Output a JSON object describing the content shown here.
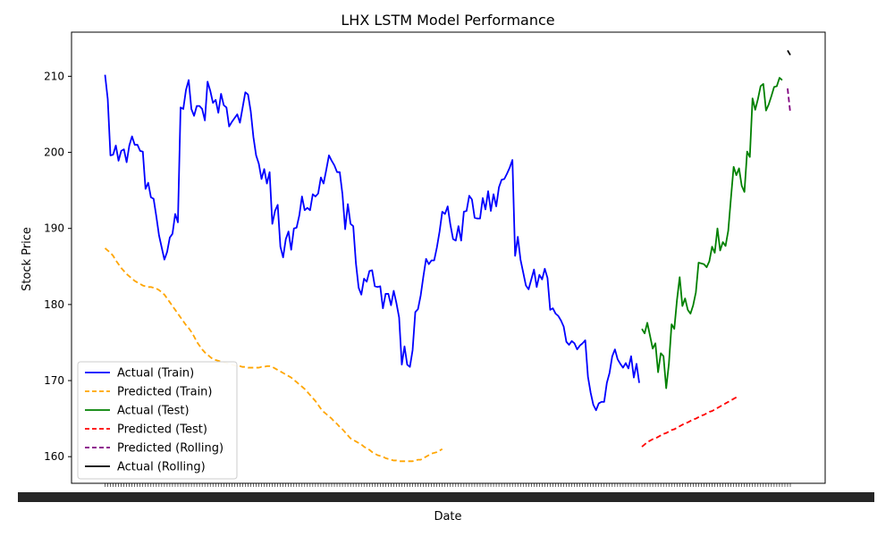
{
  "chart_data": {
    "type": "line",
    "title": "LHX LSTM Model Performance",
    "xlabel": "Date",
    "ylabel": "Stock Price",
    "ylim": [
      156.5,
      215.8
    ],
    "yticks": [
      160,
      170,
      180,
      190,
      200,
      210
    ],
    "x_ticks_note": "dense overlapping date tick labels",
    "legend_position": "lower-left",
    "grid": false,
    "series": [
      {
        "name": "Actual (Train)",
        "color": "#0000ff",
        "style": "solid",
        "start_index": 0,
        "values": [
          210.2,
          207,
          199.6,
          199.7,
          200.9,
          198.9,
          200.2,
          200.4,
          198.7,
          200.9,
          202.1,
          201,
          201,
          200.2,
          200.1,
          195.2,
          196,
          194.1,
          193.9,
          191.6,
          189.1,
          187.5,
          185.9,
          186.9,
          188.8,
          189.3,
          191.9,
          190.8,
          205.9,
          205.7,
          208.2,
          209.5,
          205.7,
          204.8,
          206.1,
          206.1,
          205.7,
          204.2,
          209.3,
          208.1,
          206.5,
          206.9,
          205.2,
          207.7,
          206.2,
          205.9,
          203.4,
          204,
          204.5,
          205,
          203.9,
          205.9,
          207.9,
          207.6,
          205.4,
          202,
          199.6,
          198.5,
          196.5,
          197.8,
          195.9,
          197.4,
          190.6,
          192.3,
          193.1,
          187.6,
          186.2,
          188.6,
          189.6,
          187.2,
          190,
          190.1,
          191.7,
          194.2,
          192.4,
          192.7,
          192.4,
          194.5,
          194.2,
          194.6,
          196.7,
          195.9,
          197.7,
          199.6,
          198.9,
          198.3,
          197.4,
          197.4,
          194.5,
          189.9,
          193.2,
          190.6,
          190.3,
          185.4,
          182.2,
          181.3,
          183.4,
          183,
          184.4,
          184.5,
          182.4,
          182.3,
          182.4,
          179.5,
          181.4,
          181.4,
          179.9,
          181.8,
          180.2,
          178.3,
          172.1,
          174.5,
          172.1,
          171.8,
          174,
          179,
          179.4,
          181.2,
          183.7,
          186,
          185.3,
          185.8,
          185.8,
          187.5,
          189.6,
          192.2,
          191.9,
          192.9,
          190.5,
          188.6,
          188.4,
          190.3,
          188.4,
          192.2,
          192.3,
          194.3,
          193.8,
          191.4,
          191.3,
          191.3,
          194,
          192.5,
          194.9,
          192.3,
          194.5,
          192.9,
          195.4,
          196.4,
          196.5,
          197.2,
          198,
          199,
          186.4,
          188.9,
          185.9,
          184.2,
          182.5,
          182,
          183.3,
          184.6,
          182.3,
          183.9,
          183.3,
          184.7,
          183.5,
          179.3,
          179.5,
          178.8,
          178.5,
          177.9,
          177.1,
          175.1,
          174.7,
          175.2,
          174.9,
          174.1,
          174.6,
          174.9,
          175.3,
          170.5,
          168.4,
          166.8,
          166.1,
          167,
          167.2,
          167.2,
          169.7,
          171,
          173.2,
          174.1,
          172.8,
          172.2,
          171.7,
          172.3,
          171.6,
          173.2,
          170.4,
          172.2,
          169.7
        ]
      },
      {
        "name": "Predicted (Train)",
        "color": "#ffa500",
        "style": "dashed",
        "start_index": 0,
        "values": [
          187.4,
          187.1,
          186.8,
          186.4,
          185.8,
          185.3,
          184.8,
          184.4,
          184,
          183.7,
          183.4,
          183.1,
          182.9,
          182.7,
          182.5,
          182.4,
          182.3,
          182.3,
          182.2,
          182.1,
          181.9,
          181.6,
          181.3,
          180.8,
          180.3,
          179.8,
          179.3,
          178.8,
          178.3,
          177.8,
          177.3,
          176.9,
          176.4,
          175.8,
          175.1,
          174.6,
          174.1,
          173.7,
          173.4,
          173.1,
          172.8,
          172.7,
          172.6,
          172.5,
          172.4,
          172.3,
          172.2,
          172.1,
          172,
          171.9,
          171.9,
          171.8,
          171.8,
          171.7,
          171.7,
          171.7,
          171.7,
          171.7,
          171.8,
          171.8,
          171.9,
          171.9,
          171.8,
          171.6,
          171.4,
          171.2,
          171,
          170.8,
          170.6,
          170.4,
          170.1,
          169.8,
          169.5,
          169.2,
          168.9,
          168.5,
          168.1,
          167.7,
          167.3,
          166.8,
          166.3,
          165.9,
          165.6,
          165.3,
          165,
          164.6,
          164.3,
          163.9,
          163.6,
          163.2,
          162.8,
          162.4,
          162.2,
          162,
          161.8,
          161.6,
          161.3,
          161.1,
          160.9,
          160.6,
          160.4,
          160.2,
          160.1,
          160,
          159.8,
          159.7,
          159.6,
          159.5,
          159.5,
          159.4,
          159.4,
          159.4,
          159.4,
          159.4,
          159.4,
          159.5,
          159.6,
          159.6,
          159.8,
          160,
          160.2,
          160.4,
          160.5,
          160.6,
          160.8,
          161
        ]
      },
      {
        "name": "Actual (Test)",
        "color": "#008000",
        "style": "solid",
        "start_index": 199,
        "values": [
          176.8,
          176.2,
          177.6,
          175.9,
          174.2,
          174.9,
          171.1,
          173.6,
          173.2,
          169,
          172.2,
          177.4,
          176.8,
          180.6,
          183.6,
          179.8,
          180.8,
          179.3,
          178.8,
          179.9,
          181.6,
          185.5,
          185.4,
          185.3,
          184.9,
          185.7,
          187.6,
          186.8,
          190,
          187.1,
          188.2,
          187.7,
          189.7,
          194,
          198.1,
          197,
          197.9,
          195.6,
          194.8,
          200.1,
          199.4,
          207.1,
          205.6,
          207,
          208.7,
          209,
          205.5,
          206.3,
          207.4,
          208.6,
          208.7,
          209.8,
          209.5
        ]
      },
      {
        "name": "Predicted (Test)",
        "color": "#ff0000",
        "style": "dashed",
        "start_index": 199,
        "values": [
          161.3,
          161.6,
          161.9,
          162.1,
          162.3,
          162.4,
          162.6,
          162.8,
          163,
          163.1,
          163.3,
          163.5,
          163.6,
          163.8,
          164,
          164.2,
          164.4,
          164.5,
          164.7,
          164.9,
          165,
          165.2,
          165.4,
          165.5,
          165.7,
          165.9,
          166,
          166.2,
          166.4,
          166.6,
          166.8,
          167,
          167.2,
          167.4,
          167.6,
          167.8,
          168
        ]
      },
      {
        "name": "Predicted (Rolling)",
        "color": "#800080",
        "style": "dashed",
        "start_index": 253,
        "values": [
          208.4,
          205.2
        ]
      },
      {
        "name": "Actual (Rolling)",
        "color": "#000000",
        "style": "solid",
        "start_index": 253,
        "values": [
          213.4,
          212.8
        ]
      }
    ],
    "x_last_index": 254
  }
}
